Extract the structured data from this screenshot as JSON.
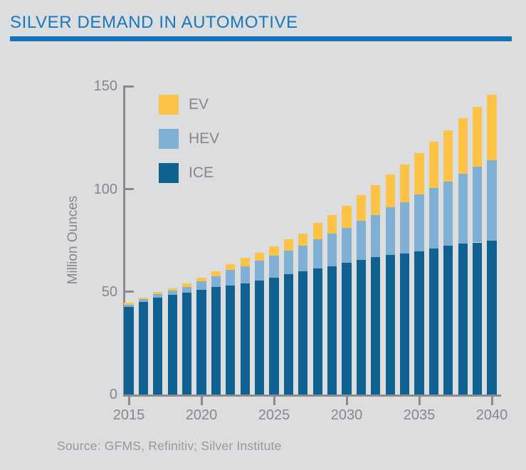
{
  "page": {
    "title": "SILVER DEMAND IN AUTOMOTIVE",
    "source": "Source: GFMS, Refinitiv; Silver Institute"
  },
  "colors": {
    "title_blue": "#1878be",
    "rule_blue": "#1273b9",
    "background": "#dcddde",
    "axis_gray": "#8a8c8e",
    "text_gray": "#85878b",
    "source_gray": "#96989b",
    "ev_yellow": "#fdc347",
    "hev_light_blue": "#7fb0d4",
    "ice_dark_blue": "#0e6191"
  },
  "chart_data": {
    "type": "bar",
    "stacked": true,
    "title": "SILVER DEMAND IN AUTOMOTIVE",
    "ylabel": "Million Ounces",
    "xlabel": "",
    "ylim": [
      0,
      150
    ],
    "y_ticks": [
      0,
      50,
      100,
      150
    ],
    "x_ticks": [
      2015,
      2020,
      2025,
      2030,
      2035,
      2040
    ],
    "grid": false,
    "legend_position": "upper-left-inside",
    "categories": [
      2015,
      2016,
      2017,
      2018,
      2019,
      2020,
      2021,
      2022,
      2023,
      2024,
      2025,
      2026,
      2027,
      2028,
      2029,
      2030,
      2031,
      2032,
      2033,
      2034,
      2035,
      2036,
      2037,
      2038,
      2039,
      2040
    ],
    "stack_order_bottom_to_top": [
      "ICE",
      "HEV",
      "EV"
    ],
    "series": [
      {
        "name": "EV",
        "color": "#fdc347",
        "values": [
          1,
          0.8,
          1,
          1,
          1.5,
          2,
          2.5,
          3,
          4,
          4,
          4.5,
          5.5,
          6,
          8,
          9,
          11,
          12.5,
          14.5,
          16,
          18.5,
          20,
          22.5,
          25,
          27,
          29,
          32
        ]
      },
      {
        "name": "HEV",
        "color": "#7fb0d4",
        "values": [
          1.3,
          1.5,
          2,
          2.2,
          3,
          4,
          5,
          7.5,
          8.5,
          9.5,
          10.5,
          11.5,
          12.5,
          14,
          16,
          17,
          19,
          20.5,
          23,
          25,
          28,
          29.5,
          31,
          34,
          37,
          39
        ]
      },
      {
        "name": "ICE",
        "color": "#0e6191",
        "values": [
          42.5,
          45,
          47,
          48.5,
          49.5,
          51,
          52.5,
          53,
          54,
          55.5,
          57,
          58.5,
          60,
          61.5,
          62.5,
          64,
          65.5,
          67,
          68,
          68.5,
          69.5,
          71,
          72.5,
          73.5,
          74,
          75
        ]
      }
    ],
    "totals": [
      44.8,
      47.3,
      50,
      51.7,
      54,
      57,
      60,
      63.5,
      66.5,
      69,
      72,
      75.5,
      78.5,
      83.5,
      87.5,
      92,
      97,
      102,
      107,
      112,
      117.5,
      123,
      128.5,
      134.5,
      140,
      146
    ]
  }
}
